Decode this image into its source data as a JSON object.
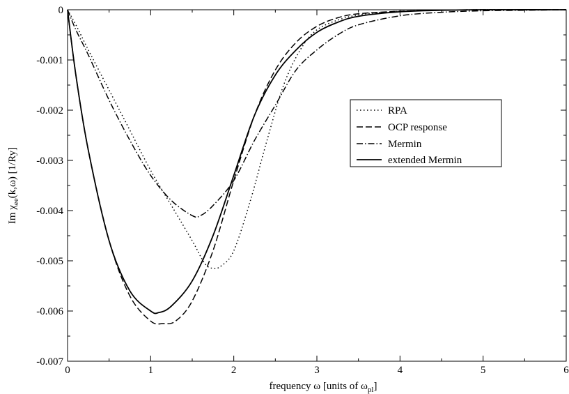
{
  "chart_data": {
    "type": "line",
    "title": "",
    "xlabel": "frequency ω [units of ω",
    "xlabel_sub": "pl",
    "xlabel_tail": "]",
    "ylabel": "Im χ",
    "ylabel_sub": "ee",
    "ylabel_tail": "(k,ω) [1/Ry]",
    "xlim": [
      0,
      6
    ],
    "ylim": [
      -0.007,
      0
    ],
    "xticks": [
      0,
      1,
      2,
      3,
      4,
      5,
      6
    ],
    "xtick_labels": [
      "0",
      "1",
      "2",
      "3",
      "4",
      "5",
      "6"
    ],
    "yticks": [
      0,
      -0.001,
      -0.002,
      -0.003,
      -0.004,
      -0.005,
      -0.006,
      -0.007
    ],
    "ytick_labels": [
      "0",
      "-0.001",
      "-0.002",
      "-0.003",
      "-0.004",
      "-0.005",
      "-0.006",
      "-0.007"
    ],
    "grid": false,
    "legend_position": "right-center",
    "series": [
      {
        "name": "RPA",
        "style": "dotted",
        "color": "#000000",
        "x": [
          0,
          0.1,
          0.25,
          0.5,
          0.75,
          1.0,
          1.25,
          1.5,
          1.65,
          1.75,
          1.85,
          2.0,
          2.2,
          2.4,
          2.6,
          2.8,
          3.0,
          3.3,
          3.6,
          4.0,
          4.5,
          5.0,
          6.0
        ],
        "y": [
          0,
          -0.0003,
          -0.0008,
          -0.0016,
          -0.0024,
          -0.0032,
          -0.0039,
          -0.0046,
          -0.00505,
          -0.00515,
          -0.0051,
          -0.0048,
          -0.0038,
          -0.0026,
          -0.0015,
          -0.0008,
          -0.0004,
          -0.00018,
          -8e-05,
          -3e-05,
          -1e-05,
          0,
          0
        ]
      },
      {
        "name": "OCP response",
        "style": "dashed",
        "color": "#000000",
        "x": [
          0,
          0.1,
          0.25,
          0.5,
          0.75,
          1.0,
          1.15,
          1.3,
          1.5,
          1.75,
          2.0,
          2.25,
          2.5,
          2.75,
          3.0,
          3.25,
          3.5,
          4.0,
          4.5,
          5.0,
          6.0
        ],
        "y": [
          0,
          -0.0013,
          -0.0028,
          -0.0046,
          -0.0057,
          -0.0062,
          -0.00625,
          -0.0062,
          -0.0058,
          -0.0048,
          -0.0034,
          -0.0021,
          -0.0012,
          -0.00065,
          -0.00033,
          -0.00016,
          -8e-05,
          -3e-05,
          -1e-05,
          0,
          0
        ]
      },
      {
        "name": "Mermin",
        "style": "dashdot",
        "color": "#000000",
        "x": [
          0,
          0.1,
          0.25,
          0.5,
          0.75,
          1.0,
          1.25,
          1.5,
          1.6,
          1.75,
          2.0,
          2.25,
          2.5,
          2.75,
          3.0,
          3.25,
          3.5,
          4.0,
          4.5,
          5.0,
          5.5,
          6.0
        ],
        "y": [
          0,
          -0.0004,
          -0.0009,
          -0.0018,
          -0.0026,
          -0.0033,
          -0.0038,
          -0.0041,
          -0.0041,
          -0.0039,
          -0.0034,
          -0.0026,
          -0.0019,
          -0.0012,
          -0.0008,
          -0.0005,
          -0.0003,
          -0.00012,
          -5e-05,
          -2e-05,
          -1e-05,
          0
        ]
      },
      {
        "name": "extended Mermin",
        "style": "solid",
        "color": "#000000",
        "x": [
          0,
          0.1,
          0.25,
          0.5,
          0.75,
          1.0,
          1.1,
          1.25,
          1.5,
          1.75,
          2.0,
          2.25,
          2.5,
          2.75,
          3.0,
          3.25,
          3.5,
          4.0,
          4.5,
          5.0,
          6.0
        ],
        "y": [
          0,
          -0.0013,
          -0.0028,
          -0.0046,
          -0.0056,
          -0.006,
          -0.00603,
          -0.0059,
          -0.0054,
          -0.0045,
          -0.0033,
          -0.0021,
          -0.0013,
          -0.0008,
          -0.00045,
          -0.00025,
          -0.00013,
          -4e-05,
          -1e-05,
          0,
          0
        ]
      }
    ]
  }
}
